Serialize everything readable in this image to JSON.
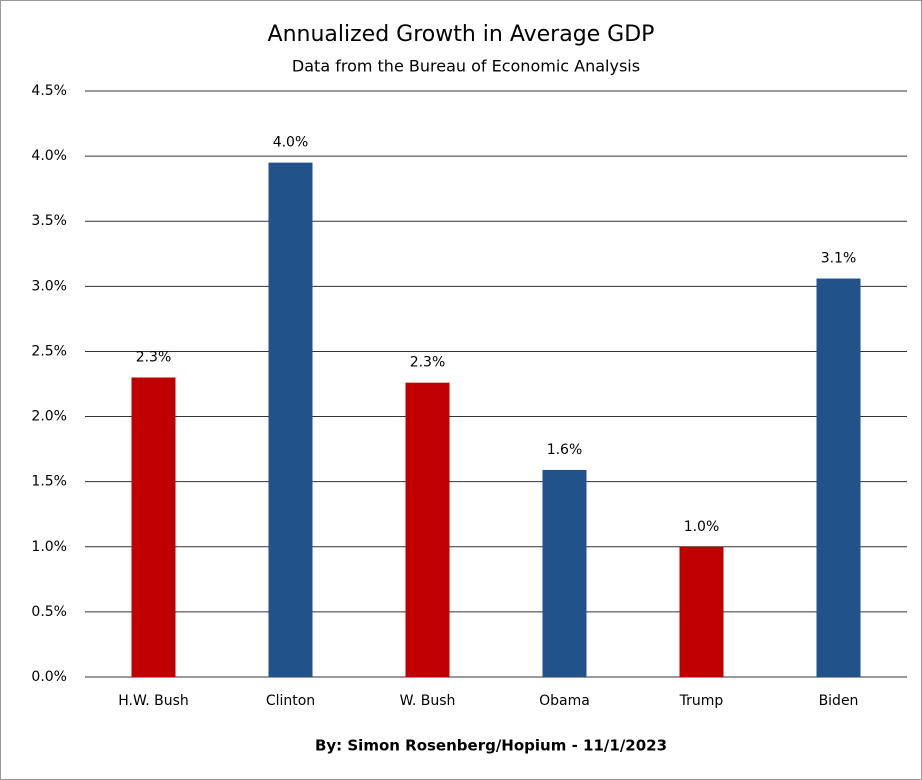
{
  "chart_data": {
    "type": "bar",
    "title": "Annualized Growth in Average GDP",
    "subtitle": "Data from the Bureau of Economic Analysis",
    "footer": "By: Simon Rosenberg/Hopium - 11/1/2023",
    "categories": [
      "H.W. Bush",
      "Clinton",
      "W. Bush",
      "Obama",
      "Trump",
      "Biden"
    ],
    "values": [
      2.3,
      3.95,
      2.26,
      1.59,
      1.0,
      3.06
    ],
    "value_labels": [
      "2.3%",
      "4.0%",
      "2.3%",
      "1.6%",
      "1.0%",
      "3.1%"
    ],
    "colors": [
      "#c00000",
      "#22528a",
      "#c00000",
      "#22528a",
      "#c00000",
      "#22528a"
    ],
    "ylim": [
      0,
      4.5
    ],
    "yticks": [
      {
        "value": 0,
        "label": "0.0%"
      },
      {
        "value": 0.5,
        "label": "0.5%"
      },
      {
        "value": 1,
        "label": "1.0%"
      },
      {
        "value": 1.5,
        "label": "1.5%"
      },
      {
        "value": 2,
        "label": "2.0%"
      },
      {
        "value": 2.5,
        "label": "2.5%"
      },
      {
        "value": 3,
        "label": "3.0%"
      },
      {
        "value": 3.5,
        "label": "3.5%"
      },
      {
        "value": 4,
        "label": "4.0%"
      },
      {
        "value": 4.5,
        "label": "4.5%"
      }
    ],
    "grid": true
  }
}
